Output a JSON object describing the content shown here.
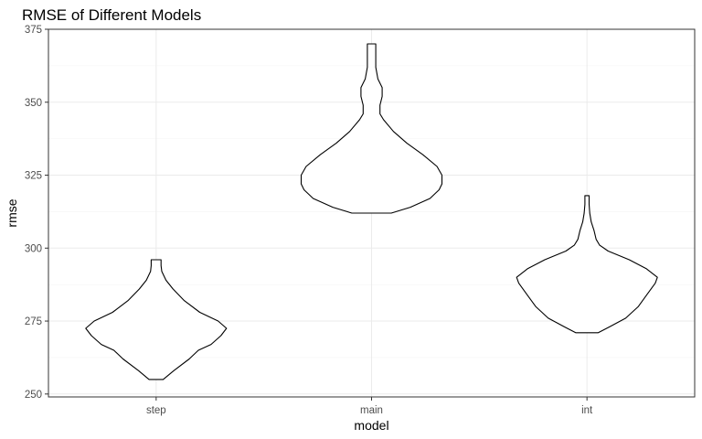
{
  "chart_data": {
    "type": "violin",
    "title": "RMSE of Different Models",
    "xlabel": "model",
    "ylabel": "rmse",
    "categories": [
      "step",
      "main",
      "int"
    ],
    "ylim": [
      249,
      375
    ],
    "yticks": [
      250,
      275,
      300,
      325,
      350,
      375
    ],
    "grid": true,
    "legend": "none",
    "theme": "bw",
    "series": [
      {
        "category": "step",
        "min": 255,
        "max": 296,
        "density_profile": [
          [
            255,
            0.1
          ],
          [
            258,
            0.25
          ],
          [
            262,
            0.47
          ],
          [
            265,
            0.6
          ],
          [
            267,
            0.78
          ],
          [
            270,
            0.92
          ],
          [
            272.5,
            1.0
          ],
          [
            275,
            0.88
          ],
          [
            278,
            0.62
          ],
          [
            282,
            0.4
          ],
          [
            286,
            0.24
          ],
          [
            289,
            0.14
          ],
          [
            292,
            0.08
          ],
          [
            294,
            0.07
          ],
          [
            296,
            0.07
          ]
        ]
      },
      {
        "category": "main",
        "min": 312,
        "max": 370,
        "density_profile": [
          [
            312,
            0.28
          ],
          [
            314,
            0.55
          ],
          [
            317,
            0.83
          ],
          [
            320,
            0.96
          ],
          [
            322,
            1.0
          ],
          [
            325,
            1.0
          ],
          [
            328,
            0.93
          ],
          [
            332,
            0.73
          ],
          [
            336,
            0.5
          ],
          [
            340,
            0.31
          ],
          [
            344,
            0.17
          ],
          [
            346,
            0.12
          ],
          [
            349,
            0.12
          ],
          [
            352,
            0.15
          ],
          [
            355,
            0.15
          ],
          [
            358,
            0.09
          ],
          [
            362,
            0.06
          ],
          [
            366,
            0.06
          ],
          [
            370,
            0.06
          ]
        ]
      },
      {
        "category": "int",
        "min": 271,
        "max": 318,
        "density_profile": [
          [
            271,
            0.16
          ],
          [
            273,
            0.32
          ],
          [
            276,
            0.55
          ],
          [
            280,
            0.73
          ],
          [
            284,
            0.85
          ],
          [
            288,
            0.97
          ],
          [
            290,
            1.0
          ],
          [
            293,
            0.84
          ],
          [
            296,
            0.6
          ],
          [
            299,
            0.3
          ],
          [
            301,
            0.18
          ],
          [
            303,
            0.13
          ],
          [
            306,
            0.1
          ],
          [
            309,
            0.06
          ],
          [
            312,
            0.04
          ],
          [
            315,
            0.03
          ],
          [
            318,
            0.03
          ]
        ]
      }
    ]
  }
}
